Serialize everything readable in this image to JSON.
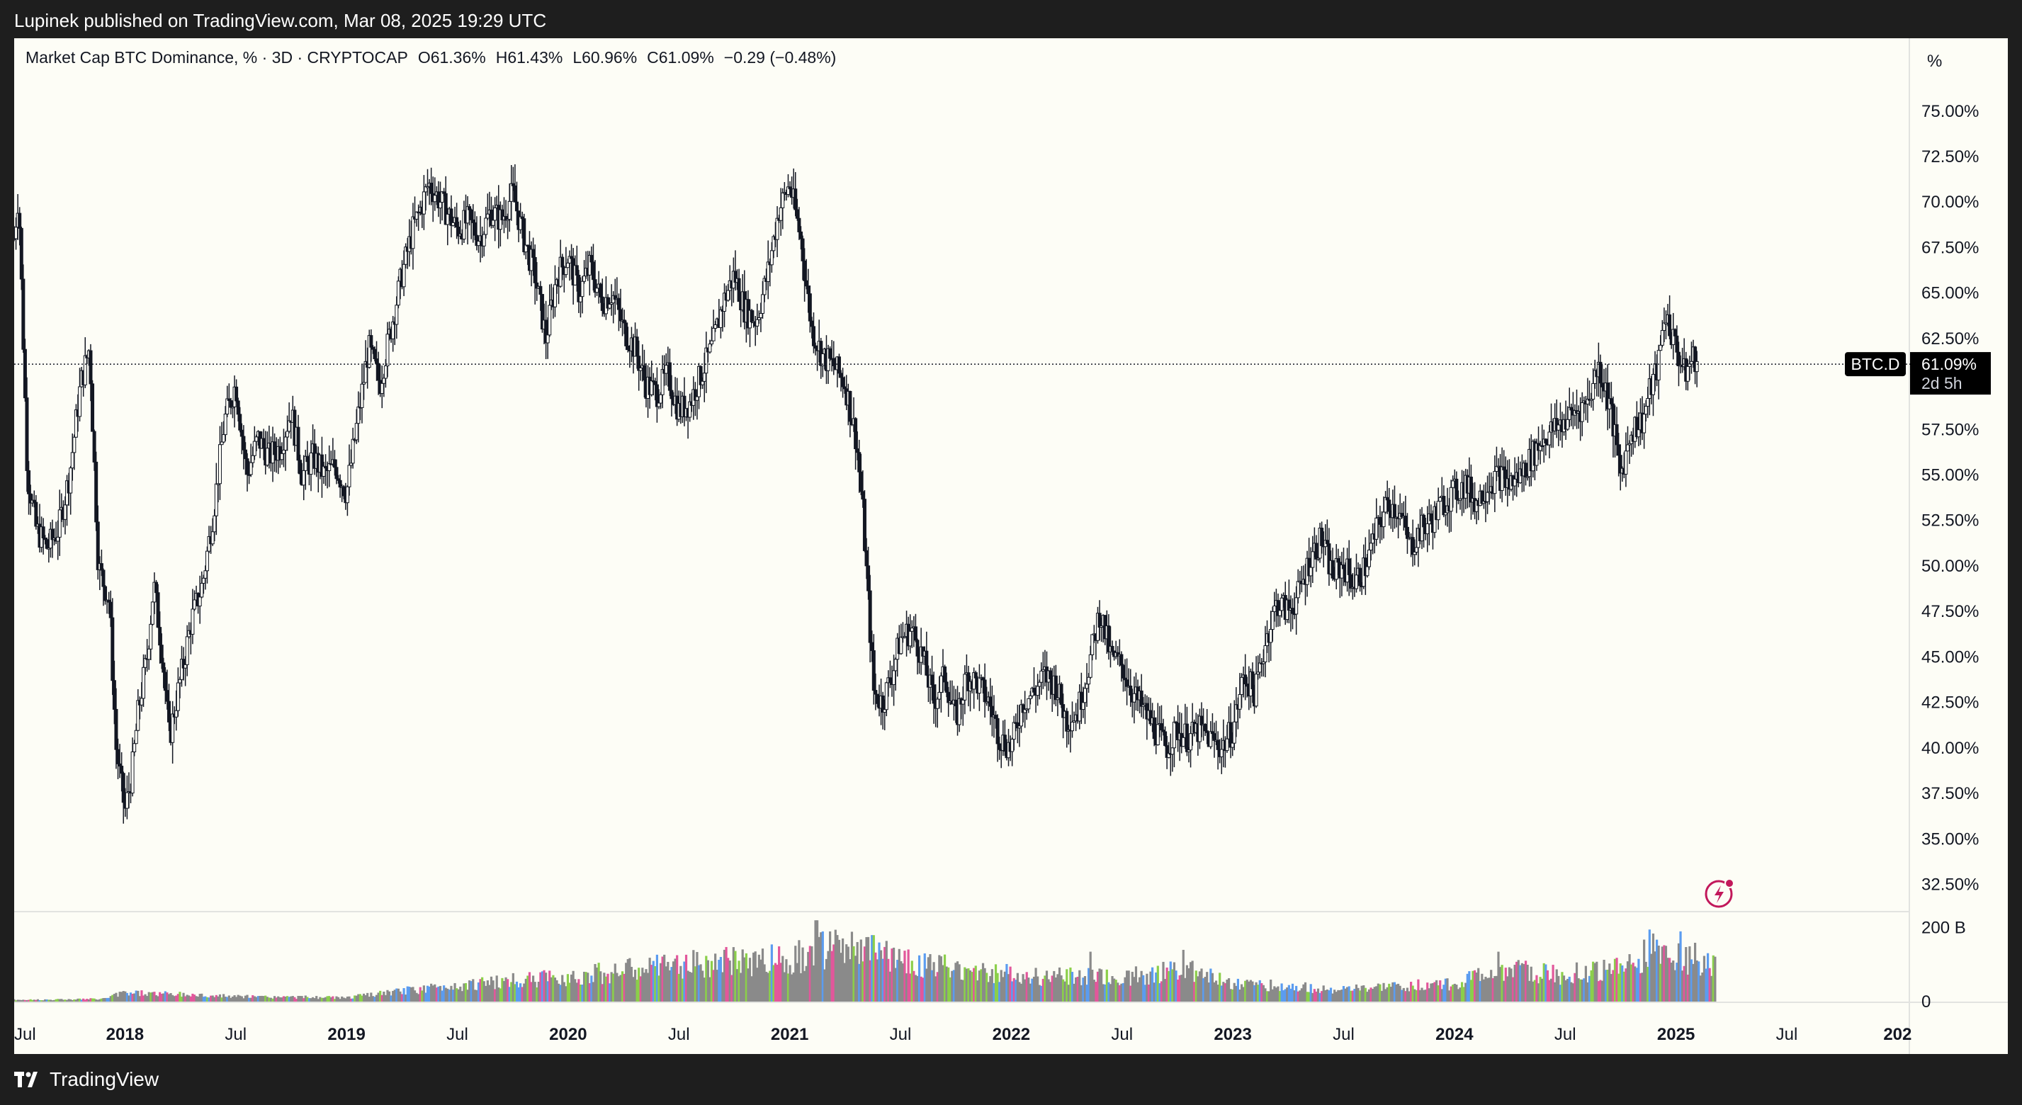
{
  "header": {
    "published": "Lupinek published on TradingView.com, Mar 08, 2025 19:29 UTC"
  },
  "legend": {
    "title": "Market Cap BTC Dominance, % · 3D · CRYPTOCAP",
    "open": "O61.36%",
    "high": "H61.43%",
    "low": "L60.96%",
    "close": "C61.09%",
    "change": "−0.29 (−0.48%)"
  },
  "footer": {
    "brand": "TradingView"
  },
  "colors": {
    "background": "#fdfdf6",
    "candle": "#131722",
    "volume_default": "#8a8a8a",
    "volume_up": "#5b9cf0",
    "volume_down": "#e2579b",
    "volume_other": "#8bcf4a",
    "label_bg": "#000000",
    "accent_icon": "#c2185b"
  },
  "icons": {
    "brand_logo": "tradingview-logo-icon",
    "alert": "lightning-alert-icon"
  },
  "chart_data": {
    "type": "candlestick",
    "title": "Market Cap BTC Dominance, % · 3D · CRYPTOCAP",
    "symbol": "BTC.D",
    "price_scale_unit": "%",
    "current_value": "61.09%",
    "countdown": "2d 5h",
    "ylim": [
      31.0,
      79.0
    ],
    "y_ticks": [
      "75.00%",
      "72.50%",
      "70.00%",
      "67.50%",
      "65.00%",
      "62.50%",
      "57.50%",
      "55.00%",
      "52.50%",
      "50.00%",
      "47.50%",
      "45.00%",
      "42.50%",
      "40.00%",
      "37.50%",
      "35.00%",
      "32.50%"
    ],
    "y_tick_values": [
      75.0,
      72.5,
      70.0,
      67.5,
      65.0,
      62.5,
      57.5,
      55.0,
      52.5,
      50.0,
      47.5,
      45.0,
      42.5,
      40.0,
      37.5,
      35.0,
      32.5
    ],
    "x_ticks": [
      {
        "label": "Jul",
        "t": 2017.5,
        "bold": false
      },
      {
        "label": "2018",
        "t": 2018.0,
        "bold": true
      },
      {
        "label": "Jul",
        "t": 2018.5,
        "bold": false
      },
      {
        "label": "2019",
        "t": 2019.0,
        "bold": true
      },
      {
        "label": "Jul",
        "t": 2019.5,
        "bold": false
      },
      {
        "label": "2020",
        "t": 2020.0,
        "bold": true
      },
      {
        "label": "Jul",
        "t": 2020.5,
        "bold": false
      },
      {
        "label": "2021",
        "t": 2021.0,
        "bold": true
      },
      {
        "label": "Jul",
        "t": 2021.5,
        "bold": false
      },
      {
        "label": "2022",
        "t": 2022.0,
        "bold": true
      },
      {
        "label": "Jul",
        "t": 2022.5,
        "bold": false
      },
      {
        "label": "2023",
        "t": 2023.0,
        "bold": true
      },
      {
        "label": "Jul",
        "t": 2023.5,
        "bold": false
      },
      {
        "label": "2024",
        "t": 2024.0,
        "bold": true
      },
      {
        "label": "Jul",
        "t": 2024.5,
        "bold": false
      },
      {
        "label": "2025",
        "t": 2025.0,
        "bold": true
      },
      {
        "label": "Jul",
        "t": 2025.5,
        "bold": false
      },
      {
        "label": "202",
        "t": 2026.0,
        "bold": true
      }
    ],
    "xlim": [
      2017.5,
      2026.05
    ],
    "close_series": {
      "t": [
        2017.5,
        2017.52,
        2017.56,
        2017.6,
        2017.65,
        2017.7,
        2017.75,
        2017.78,
        2017.8,
        2017.84,
        2017.88,
        2017.93,
        2017.96,
        2018.0,
        2018.03,
        2018.06,
        2018.1,
        2018.13,
        2018.17,
        2018.2,
        2018.23,
        2018.27,
        2018.3,
        2018.35,
        2018.4,
        2018.45,
        2018.5,
        2018.55,
        2018.6,
        2018.65,
        2018.7,
        2018.75,
        2018.8,
        2018.85,
        2018.9,
        2018.95,
        2019.0,
        2019.05,
        2019.1,
        2019.15,
        2019.2,
        2019.25,
        2019.3,
        2019.33,
        2019.37,
        2019.4,
        2019.45,
        2019.5,
        2019.55,
        2019.6,
        2019.65,
        2019.7,
        2019.75,
        2019.8,
        2019.85,
        2019.9,
        2019.95,
        2020.0,
        2020.05,
        2020.1,
        2020.15,
        2020.2,
        2020.25,
        2020.3,
        2020.35,
        2020.4,
        2020.45,
        2020.5,
        2020.55,
        2020.6,
        2020.65,
        2020.7,
        2020.75,
        2020.8,
        2020.85,
        2020.9,
        2020.95,
        2021.0,
        2021.05,
        2021.1,
        2021.15,
        2021.2,
        2021.25,
        2021.3,
        2021.33,
        2021.36,
        2021.38,
        2021.42,
        2021.46,
        2021.5,
        2021.55,
        2021.6,
        2021.65,
        2021.7,
        2021.75,
        2021.8,
        2021.85,
        2021.9,
        2021.95,
        2022.0,
        2022.05,
        2022.1,
        2022.15,
        2022.2,
        2022.25,
        2022.3,
        2022.35,
        2022.4,
        2022.45,
        2022.5,
        2022.55,
        2022.6,
        2022.65,
        2022.7,
        2022.75,
        2022.8,
        2022.85,
        2022.9,
        2022.95,
        2023.0,
        2023.05,
        2023.1,
        2023.15,
        2023.2,
        2023.25,
        2023.3,
        2023.35,
        2023.4,
        2023.45,
        2023.5,
        2023.55,
        2023.6,
        2023.65,
        2023.7,
        2023.75,
        2023.8,
        2023.85,
        2023.9,
        2023.95,
        2024.0,
        2024.05,
        2024.1,
        2024.15,
        2024.2,
        2024.25,
        2024.3,
        2024.35,
        2024.4,
        2024.45,
        2024.5,
        2024.55,
        2024.6,
        2024.65,
        2024.7,
        2024.75,
        2024.8,
        2024.85,
        2024.88,
        2024.92,
        2024.95,
        2025.0,
        2025.04,
        2025.08,
        2025.1,
        2025.13,
        2025.15,
        2025.18
      ],
      "v": [
        68.0,
        70.5,
        55.0,
        52.0,
        51.0,
        52.0,
        55.0,
        58.0,
        60.0,
        62.0,
        50.0,
        48.0,
        40.0,
        36.5,
        38.5,
        42.0,
        45.0,
        49.0,
        45.0,
        40.5,
        42.5,
        45.0,
        47.0,
        49.0,
        53.0,
        58.0,
        60.0,
        55.0,
        57.0,
        56.0,
        56.5,
        58.5,
        55.0,
        56.0,
        55.0,
        55.5,
        54.0,
        58.0,
        62.0,
        60.0,
        63.0,
        66.0,
        68.5,
        69.5,
        71.0,
        70.5,
        69.5,
        68.5,
        69.0,
        68.0,
        69.5,
        69.0,
        70.5,
        68.0,
        66.0,
        62.5,
        66.0,
        67.0,
        65.0,
        66.5,
        64.5,
        65.0,
        63.0,
        62.0,
        60.0,
        59.5,
        60.5,
        58.5,
        59.0,
        60.5,
        62.0,
        64.5,
        66.0,
        64.0,
        63.5,
        66.0,
        69.5,
        71.0,
        68.0,
        63.0,
        61.5,
        61.0,
        60.0,
        57.0,
        53.0,
        47.0,
        43.0,
        42.5,
        44.0,
        46.0,
        46.5,
        45.0,
        42.5,
        44.0,
        41.5,
        44.0,
        43.5,
        42.5,
        40.5,
        40.0,
        42.5,
        43.0,
        44.0,
        43.5,
        41.5,
        42.0,
        44.5,
        47.5,
        45.0,
        44.5,
        43.0,
        42.0,
        41.0,
        40.0,
        41.0,
        40.5,
        41.0,
        40.5,
        40.0,
        41.0,
        44.0,
        43.0,
        46.0,
        48.0,
        47.5,
        48.5,
        50.5,
        51.5,
        49.5,
        50.0,
        49.0,
        50.0,
        52.0,
        53.5,
        53.0,
        51.0,
        52.0,
        52.5,
        53.5,
        54.0,
        54.5,
        53.5,
        54.5,
        55.0,
        54.5,
        55.0,
        56.0,
        57.0,
        57.5,
        58.0,
        58.5,
        59.0,
        61.0,
        59.0,
        55.0,
        57.5,
        58.0,
        59.5,
        61.0,
        64.0,
        62.0,
        60.5,
        61.5,
        61.09
      ],
      "note": "approximate close values read from the price axis (3-day candles)"
    },
    "volume": {
      "unit": "B",
      "ticks": [
        "200 B",
        "0"
      ],
      "tick_values": [
        200,
        0
      ],
      "ylim": [
        0,
        230
      ],
      "profile_t": [
        2017.5,
        2017.9,
        2018.0,
        2018.5,
        2019.0,
        2019.5,
        2020.0,
        2020.5,
        2021.0,
        2021.2,
        2021.4,
        2021.6,
        2022.0,
        2022.5,
        2022.8,
        2023.0,
        2023.5,
        2024.0,
        2024.2,
        2024.5,
        2024.8,
        2024.9,
        2025.0,
        2025.18
      ],
      "profile_v": [
        5,
        8,
        28,
        15,
        12,
        50,
        75,
        110,
        130,
        160,
        150,
        110,
        80,
        70,
        100,
        55,
        35,
        55,
        95,
        80,
        110,
        160,
        140,
        115
      ],
      "peaks": [
        {
          "t": 2021.12,
          "v": 220
        },
        {
          "t": 2022.36,
          "v": 135
        },
        {
          "t": 2022.78,
          "v": 140
        },
        {
          "t": 2024.2,
          "v": 135
        },
        {
          "t": 2024.88,
          "v": 195
        },
        {
          "t": 2025.02,
          "v": 190
        }
      ]
    }
  }
}
